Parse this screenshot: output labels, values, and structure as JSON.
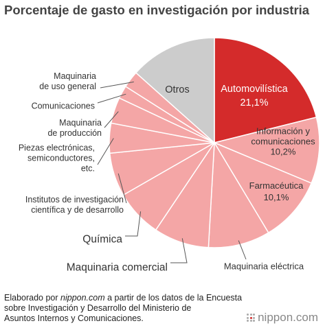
{
  "colors": {
    "highlight": "#d42b2b",
    "others": "#cccccc",
    "industry": "#f4a6a6",
    "border": "#ffffff",
    "leader": "#555555"
  },
  "chart_data": {
    "type": "pie",
    "title": "Porcentaje de gasto en investigación por industria",
    "slices": [
      {
        "label": "Automovilística",
        "value": 21.1,
        "value_label": "21,1%",
        "category": "highlight"
      },
      {
        "label": "Información y comunicaciones",
        "value": 10.2,
        "value_label": "10,2%",
        "category": "industry"
      },
      {
        "label": "Farmacéutica",
        "value": 10.1,
        "value_label": "10,1%",
        "category": "industry"
      },
      {
        "label": "Maquinaria eléctrica",
        "value": 9.5,
        "category": "industry"
      },
      {
        "label": "Maquinaria comercial",
        "value": 8.5,
        "category": "industry"
      },
      {
        "label": "Química",
        "value": 7.3,
        "category": "industry"
      },
      {
        "label": "Institutos de investigación científica y de desarrollo",
        "value": 6.7,
        "category": "industry"
      },
      {
        "label": "Piezas electrónicas, semiconductores, etc.",
        "value": 4.6,
        "category": "industry"
      },
      {
        "label": "Maquinaria de producción",
        "value": 4.0,
        "category": "industry"
      },
      {
        "label": "Comunicaciones",
        "value": 2.0,
        "category": "industry"
      },
      {
        "label": "Maquinaria de uso general",
        "value": 2.6,
        "category": "industry"
      },
      {
        "label": "Otros",
        "value": 13.4,
        "category": "others"
      }
    ]
  },
  "footer": {
    "prefix": "Elaborado por ",
    "source_site": "nippon.com",
    "suffix": " a partir de los datos de la Encuesta",
    "line2": "sobre Investigación y Desarrollo del Ministerio de",
    "line3": "Asuntos Internos y Comunicaciones."
  },
  "brand": {
    "name": "nippon",
    "tld": ".com"
  }
}
